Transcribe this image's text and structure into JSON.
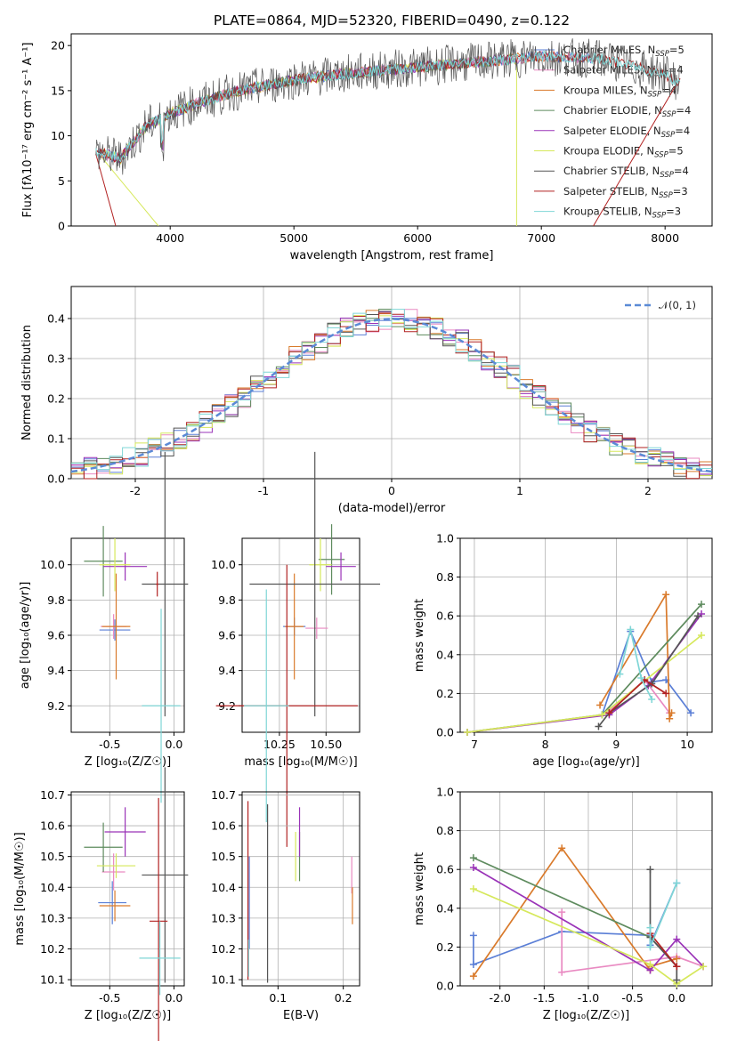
{
  "title": "PLATE=0864, MJD=52320, FIBERID=0490, z=0.122",
  "colors": {
    "Chabrier MILES": "#5b7fd6",
    "Salpeter MILES": "#e98ac2",
    "Kroupa MILES": "#d97a2b",
    "Chabrier ELODIE": "#5e8b5e",
    "Salpeter ELODIE": "#9a33b8",
    "Kroupa ELODIE": "#d6e85b",
    "Chabrier STELIB": "#555555",
    "Salpeter STELIB": "#b22222",
    "Kroupa STELIB": "#7fd6d6"
  },
  "legend_labels": [
    "Chabrier MILES, N",
    "Salpeter MILES, N",
    "Kroupa MILES, N",
    "Chabrier ELODIE, N",
    "Salpeter ELODIE, N",
    "Kroupa ELODIE, N",
    "Chabrier STELIB, N",
    "Salpeter STELIB, N",
    "Kroupa STELIB, N"
  ],
  "legend_sub": "SSP",
  "legend_counts": [
    "=5",
    "=4",
    "=4",
    "=4",
    "=4",
    "=5",
    "=4",
    "=3",
    "=3"
  ],
  "normal_label": "𝒩(0, 1)",
  "chart_data": [
    {
      "type": "line",
      "xlabel": "wavelength [Angstrom, rest frame]",
      "ylabel": "Flux [fλ10⁻¹⁷ erg cm⁻² s⁻¹ A⁻¹]",
      "xlim": [
        3200,
        8380
      ],
      "ylim": [
        0,
        21.3
      ],
      "xticks": [
        4000,
        5000,
        6000,
        7000,
        8000
      ],
      "yticks": [
        0,
        5,
        10,
        15,
        20
      ],
      "x": [
        3400,
        3600,
        3800,
        4000,
        4200,
        4500,
        5000,
        5500,
        6000,
        6500,
        7000,
        7500,
        8000,
        8100
      ],
      "y": [
        8.2,
        7.5,
        11.0,
        12.5,
        13.5,
        14.8,
        16.2,
        17.0,
        17.6,
        18.2,
        18.8,
        18.5,
        16.8,
        16.0
      ]
    },
    {
      "type": "line",
      "xlabel": "(data-model)/error",
      "ylabel": "Normed distribution",
      "xlim": [
        -2.5,
        2.5
      ],
      "ylim": [
        0,
        0.48
      ],
      "xticks": [
        -2,
        -1,
        0,
        1,
        2
      ],
      "yticks": [
        0.0,
        0.1,
        0.2,
        0.3,
        0.4
      ],
      "series": [
        {
          "name": "𝒩(0, 1)",
          "mean": 0,
          "sigma": 1
        }
      ]
    },
    {
      "type": "scatter",
      "xlabel": "Z [log₁₀(Z/Z☉)]",
      "ylabel": "age  [log₁₀(age/yr)]",
      "xlim": [
        -0.8,
        0.08
      ],
      "ylim": [
        9.05,
        10.15
      ],
      "xticks": [
        -0.5,
        0.0
      ],
      "yticks": [
        9.2,
        9.4,
        9.6,
        9.8,
        10.0
      ],
      "points": [
        {
          "x": -0.46,
          "y": 9.63,
          "xerr": 0.12,
          "yerr": 0.06,
          "series": "Chabrier MILES"
        },
        {
          "x": -0.47,
          "y": 9.65,
          "xerr": 0.1,
          "yerr": 0.07,
          "series": "Salpeter MILES"
        },
        {
          "x": -0.45,
          "y": 9.65,
          "xerr": 0.11,
          "yerr": 0.3,
          "series": "Kroupa MILES"
        },
        {
          "x": -0.55,
          "y": 10.02,
          "xerr": 0.15,
          "yerr": 0.2,
          "series": "Chabrier ELODIE"
        },
        {
          "x": -0.38,
          "y": 9.99,
          "xerr": 0.17,
          "yerr": 0.08,
          "series": "Salpeter ELODIE"
        },
        {
          "x": -0.46,
          "y": 10.0,
          "xerr": 0.12,
          "yerr": 0.15,
          "series": "Kroupa ELODIE"
        },
        {
          "x": -0.07,
          "y": 9.89,
          "xerr": 0.18,
          "yerr": 0.75,
          "series": "Chabrier STELIB"
        },
        {
          "x": -0.13,
          "y": 9.89,
          "xerr": 0.01,
          "yerr": 0.07,
          "series": "Salpeter STELIB"
        },
        {
          "x": -0.1,
          "y": 9.2,
          "xerr": 0.15,
          "yerr": 0.55,
          "series": "Kroupa STELIB"
        }
      ]
    },
    {
      "type": "scatter",
      "xlabel": "mass [log₁₀(M/M☉)]",
      "ylabel": "",
      "xlim": [
        10.05,
        10.68
      ],
      "ylim": [
        9.05,
        10.15
      ],
      "xticks": [
        10.25,
        10.5
      ],
      "yticks": [
        9.2,
        9.4,
        9.6,
        9.8,
        10.0
      ],
      "points": [
        {
          "x": 10.33,
          "y": 9.65,
          "xerr": 0.06,
          "yerr": 0.05,
          "series": "Chabrier MILES"
        },
        {
          "x": 10.45,
          "y": 9.64,
          "xerr": 0.06,
          "yerr": 0.06,
          "series": "Salpeter MILES"
        },
        {
          "x": 10.33,
          "y": 9.65,
          "xerr": 0.05,
          "yerr": 0.3,
          "series": "Kroupa MILES"
        },
        {
          "x": 10.53,
          "y": 10.03,
          "xerr": 0.07,
          "yerr": 0.2,
          "series": "Chabrier ELODIE"
        },
        {
          "x": 10.58,
          "y": 9.99,
          "xerr": 0.08,
          "yerr": 0.08,
          "series": "Salpeter ELODIE"
        },
        {
          "x": 10.47,
          "y": 10.0,
          "xerr": 0.06,
          "yerr": 0.15,
          "series": "Kroupa ELODIE"
        },
        {
          "x": 10.44,
          "y": 9.89,
          "xerr": 0.35,
          "yerr": 0.75,
          "series": "Chabrier STELIB"
        },
        {
          "x": 10.29,
          "y": 9.2,
          "xerr": 0.38,
          "yerr": 0.8,
          "series": "Salpeter STELIB"
        },
        {
          "x": 10.18,
          "y": 9.2,
          "xerr": 0.12,
          "yerr": 0.66,
          "series": "Kroupa STELIB"
        }
      ]
    },
    {
      "type": "line",
      "xlabel": "age  [log₁₀(age/yr)]",
      "ylabel": "mass weight",
      "xlim": [
        6.8,
        10.35
      ],
      "ylim": [
        0,
        1.0
      ],
      "xticks": [
        7,
        8,
        9,
        10
      ],
      "yticks": [
        0.0,
        0.2,
        0.4,
        0.6,
        0.8,
        1.0
      ],
      "series": [
        {
          "name": "Chabrier MILES",
          "x": [
            8.8,
            9.2,
            9.5,
            9.7,
            10.05
          ],
          "y": [
            0.09,
            0.52,
            0.26,
            0.27,
            0.1
          ]
        },
        {
          "name": "Salpeter MILES",
          "x": [
            8.9,
            9.4,
            9.75
          ],
          "y": [
            0.11,
            0.27,
            0.1
          ]
        },
        {
          "name": "Kroupa MILES",
          "x": [
            8.77,
            9.7,
            9.75,
            9.78
          ],
          "y": [
            0.14,
            0.71,
            0.07,
            0.1
          ]
        },
        {
          "name": "Chabrier ELODIE",
          "x": [
            6.9,
            8.8,
            10.2
          ],
          "y": [
            0.0,
            0.09,
            0.66
          ]
        },
        {
          "name": "Salpeter ELODIE",
          "x": [
            6.9,
            8.9,
            9.45,
            10.2
          ],
          "y": [
            0.0,
            0.09,
            0.24,
            0.61
          ]
        },
        {
          "name": "Kroupa ELODIE",
          "x": [
            6.9,
            8.8,
            10.2
          ],
          "y": [
            0.0,
            0.09,
            0.5
          ]
        },
        {
          "name": "Chabrier STELIB",
          "x": [
            8.75,
            8.9,
            9.5,
            10.15
          ],
          "y": [
            0.03,
            0.1,
            0.25,
            0.6
          ]
        },
        {
          "name": "Salpeter STELIB",
          "x": [
            8.9,
            9.4,
            9.7
          ],
          "y": [
            0.1,
            0.27,
            0.2
          ]
        },
        {
          "name": "Kroupa STELIB",
          "x": [
            9.05,
            9.2,
            9.35,
            9.5
          ],
          "y": [
            0.3,
            0.53,
            0.28,
            0.17
          ]
        }
      ]
    },
    {
      "type": "scatter",
      "xlabel": "Z [log₁₀(Z/Z☉)]",
      "ylabel": "mass [log₁₀(M/M☉)]",
      "xlim": [
        -0.8,
        0.08
      ],
      "ylim": [
        10.08,
        10.71
      ],
      "xticks": [
        -0.5,
        0.0
      ],
      "yticks": [
        10.1,
        10.2,
        10.3,
        10.4,
        10.5,
        10.6,
        10.7
      ],
      "points": [
        {
          "x": -0.48,
          "y": 10.35,
          "xerr": 0.11,
          "yerr": 0.07,
          "series": "Chabrier MILES"
        },
        {
          "x": -0.47,
          "y": 10.45,
          "xerr": 0.09,
          "yerr": 0.06,
          "series": "Salpeter MILES"
        },
        {
          "x": -0.46,
          "y": 10.34,
          "xerr": 0.12,
          "yerr": 0.05,
          "series": "Kroupa MILES"
        },
        {
          "x": -0.55,
          "y": 10.53,
          "xerr": 0.15,
          "yerr": 0.08,
          "series": "Chabrier ELODIE"
        },
        {
          "x": -0.38,
          "y": 10.58,
          "xerr": 0.16,
          "yerr": 0.08,
          "series": "Salpeter ELODIE"
        },
        {
          "x": -0.45,
          "y": 10.47,
          "xerr": 0.15,
          "yerr": 0.04,
          "series": "Kroupa ELODIE"
        },
        {
          "x": -0.07,
          "y": 10.44,
          "xerr": 0.18,
          "yerr": 0.35,
          "series": "Chabrier STELIB"
        },
        {
          "x": -0.12,
          "y": 10.29,
          "xerr": 0.07,
          "yerr": 0.4,
          "series": "Salpeter STELIB"
        },
        {
          "x": -0.11,
          "y": 10.17,
          "xerr": 0.16,
          "yerr": 0.12,
          "series": "Kroupa STELIB"
        }
      ]
    },
    {
      "type": "scatter",
      "xlabel": "E(B-V)",
      "ylabel": "",
      "xlim": [
        0.045,
        0.225
      ],
      "ylim": [
        10.08,
        10.71
      ],
      "xticks": [
        0.1,
        0.2
      ],
      "yticks": [
        10.1,
        10.2,
        10.3,
        10.4,
        10.5,
        10.6,
        10.7
      ],
      "points": [
        {
          "x": 0.056,
          "y": 10.35,
          "xerr": 0,
          "yerr": 0.15,
          "series": "Chabrier MILES"
        },
        {
          "x": 0.213,
          "y": 10.44,
          "xerr": 0,
          "yerr": 0.06,
          "series": "Salpeter MILES"
        },
        {
          "x": 0.214,
          "y": 10.34,
          "xerr": 0,
          "yerr": 0.06,
          "series": "Kroupa MILES"
        },
        {
          "x": 0.133,
          "y": 10.5,
          "xerr": 0,
          "yerr": 0.08,
          "series": "Chabrier ELODIE"
        },
        {
          "x": 0.133,
          "y": 10.58,
          "xerr": 0,
          "yerr": 0.08,
          "series": "Salpeter ELODIE"
        },
        {
          "x": 0.127,
          "y": 10.5,
          "xerr": 0,
          "yerr": 0.08,
          "series": "Kroupa ELODIE"
        },
        {
          "x": 0.084,
          "y": 10.38,
          "xerr": 0,
          "yerr": 0.29,
          "series": "Chabrier STELIB"
        },
        {
          "x": 0.054,
          "y": 10.39,
          "xerr": 0,
          "yerr": 0.29,
          "series": "Salpeter STELIB"
        },
        {
          "x": 0.055,
          "y": 10.17,
          "xerr": 0,
          "yerr": 0.06,
          "series": "Kroupa STELIB"
        }
      ]
    },
    {
      "type": "line",
      "xlabel": "Z [log₁₀(Z/Z☉)]",
      "ylabel": "mass weight",
      "xlim": [
        -2.45,
        0.4
      ],
      "ylim": [
        0,
        1.0
      ],
      "xticks": [
        -2.0,
        -1.5,
        -1.0,
        -0.5,
        0.0
      ],
      "yticks": [
        0.0,
        0.2,
        0.4,
        0.6,
        0.8,
        1.0
      ],
      "series": [
        {
          "name": "Chabrier MILES",
          "x": [
            -2.3,
            -2.3,
            -1.3,
            -0.3,
            -0.3,
            0.0
          ],
          "y": [
            0.26,
            0.11,
            0.28,
            0.26,
            0.21,
            0.53
          ]
        },
        {
          "name": "Salpeter MILES",
          "x": [
            -1.3,
            -1.3,
            0.0,
            0.3
          ],
          "y": [
            0.38,
            0.07,
            0.15,
            0.1
          ]
        },
        {
          "name": "Kroupa MILES",
          "x": [
            -2.3,
            -1.3,
            -0.3,
            -0.3,
            0.0
          ],
          "y": [
            0.05,
            0.71,
            0.08,
            0.1,
            0.14
          ]
        },
        {
          "name": "Chabrier ELODIE",
          "x": [
            -2.3,
            -0.3,
            0.0
          ],
          "y": [
            0.66,
            0.25,
            0.1
          ]
        },
        {
          "name": "Salpeter ELODIE",
          "x": [
            -2.3,
            -0.3,
            0.0,
            0.3
          ],
          "y": [
            0.61,
            0.08,
            0.24,
            0.1
          ]
        },
        {
          "name": "Kroupa ELODIE",
          "x": [
            -2.3,
            -0.3,
            0.0,
            0.3
          ],
          "y": [
            0.5,
            0.11,
            0.01,
            0.1
          ]
        },
        {
          "name": "Chabrier STELIB",
          "x": [
            -0.3,
            -0.3,
            0.0,
            0.0
          ],
          "y": [
            0.6,
            0.25,
            0.1,
            0.03
          ]
        },
        {
          "name": "Salpeter STELIB",
          "x": [
            -0.3,
            0.0
          ],
          "y": [
            0.27,
            0.1
          ]
        },
        {
          "name": "Kroupa STELIB",
          "x": [
            -0.3,
            -0.3,
            0.0
          ],
          "y": [
            0.3,
            0.2,
            0.53
          ]
        }
      ]
    }
  ]
}
